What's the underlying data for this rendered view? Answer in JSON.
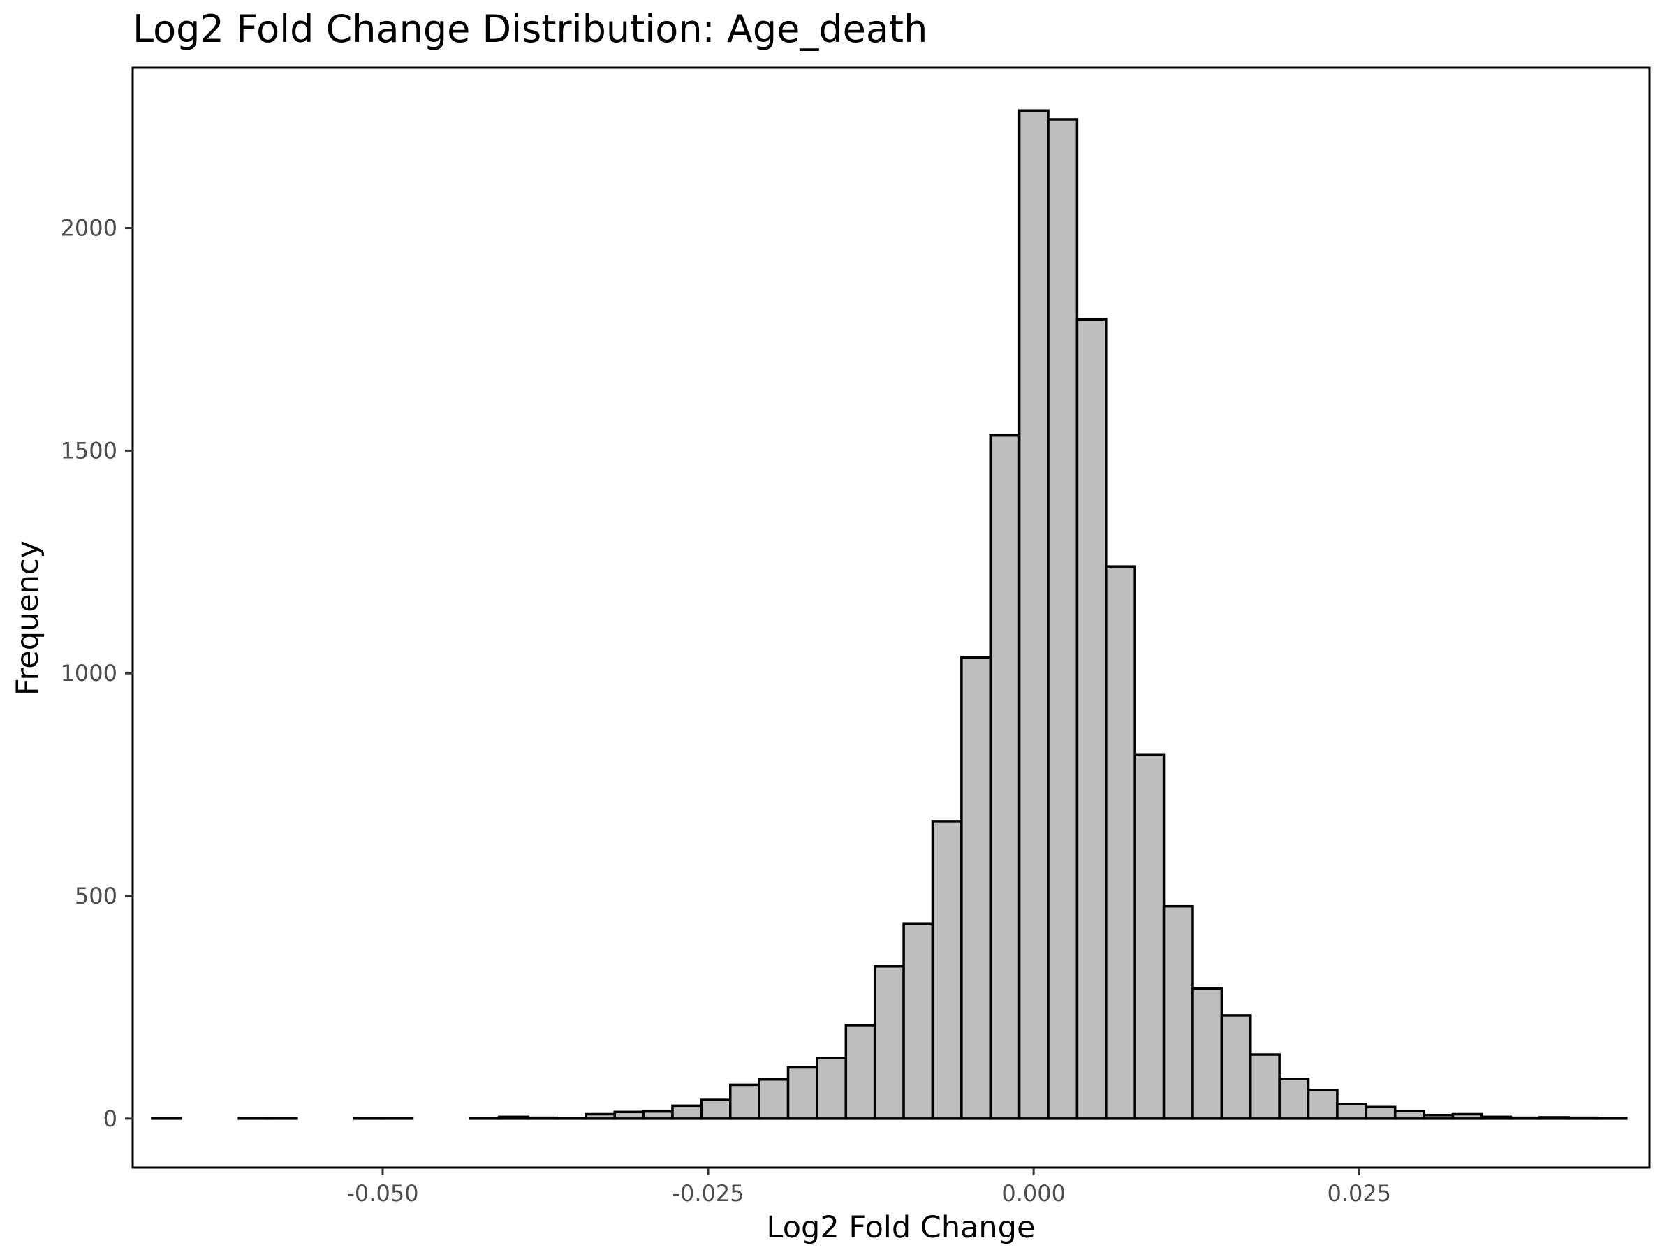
{
  "chart_data": {
    "type": "bar",
    "title": "Log2 Fold Change Distribution: Age_death",
    "xlabel": "Log2 Fold Change",
    "ylabel": "Frequency",
    "xlim": [
      -0.0692,
      0.0473
    ],
    "ylim": [
      -110,
      2360
    ],
    "x_ticks": [
      -0.05,
      -0.025,
      0.0,
      0.025
    ],
    "x_tick_labels": [
      "-0.050",
      "-0.025",
      "0.000",
      "0.025"
    ],
    "y_ticks": [
      0,
      500,
      1000,
      1500,
      2000
    ],
    "y_tick_labels": [
      "0",
      "500",
      "1000",
      "1500",
      "2000"
    ],
    "grid": false,
    "bin_width": 0.00222,
    "bins_start": -0.0677,
    "values": [
      1,
      0,
      0,
      1,
      1,
      0,
      0,
      1,
      1,
      0,
      0,
      1,
      4,
      2,
      1,
      10,
      15,
      16,
      29,
      42,
      76,
      88,
      115,
      136,
      210,
      342,
      437,
      668,
      1036,
      1534,
      2264,
      2244,
      1795,
      1240,
      818,
      477,
      292,
      232,
      144,
      89,
      64,
      33,
      26,
      17,
      8,
      10,
      4,
      2,
      3,
      2,
      1
    ]
  }
}
